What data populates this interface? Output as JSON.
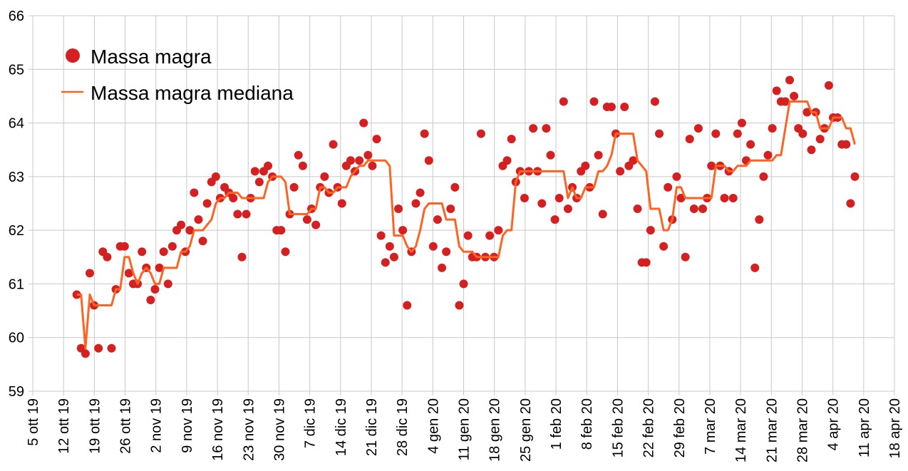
{
  "chart_data": {
    "type": "line",
    "title": "",
    "xlabel": "",
    "ylabel": "",
    "ylim": [
      59,
      66
    ],
    "yticks": [
      "59",
      "60",
      "61",
      "62",
      "63",
      "64",
      "65",
      "66"
    ],
    "xticks": [
      "5 ott 19",
      "12 ott 19",
      "19 ott 19",
      "26 ott 19",
      "2 nov 19",
      "9 nov 19",
      "16 nov 19",
      "23 nov 19",
      "30 nov 19",
      "7 dic 19",
      "14 dic 19",
      "21 dic 19",
      "28 dic 19",
      "4 gen 20",
      "11 gen 20",
      "18 gen 20",
      "25 gen 20",
      "1 feb 20",
      "8 feb 20",
      "15 feb 20",
      "22 feb 20",
      "29 feb 20",
      "7 mar 20",
      "14 mar 20",
      "21 mar 20",
      "28 mar 20",
      "4 apr 20",
      "11 apr 20",
      "18 apr 20"
    ],
    "x_unit": "days since 5 ott 19",
    "x_range_days": [
      0,
      196
    ],
    "data_day_range": [
      10,
      187
    ],
    "grid": true,
    "legend_position": "top-left",
    "colors": {
      "points": "#d42020",
      "median": "#ff6321",
      "grid": "#c8c8c8"
    },
    "series": [
      {
        "name": "Massa magra",
        "kind": "scatter",
        "values": [
          60.8,
          59.8,
          59.7,
          61.2,
          60.6,
          59.8,
          61.6,
          61.5,
          59.8,
          60.9,
          61.7,
          61.7,
          61.2,
          61.0,
          61.0,
          61.6,
          61.3,
          60.7,
          60.9,
          61.3,
          61.6,
          61.0,
          61.7,
          62.0,
          62.1,
          61.6,
          62.0,
          62.7,
          62.2,
          61.8,
          62.5,
          62.9,
          63.0,
          62.6,
          62.8,
          62.7,
          62.6,
          62.3,
          61.5,
          62.3,
          62.6,
          63.1,
          62.9,
          63.1,
          63.2,
          63.0,
          62.0,
          62.0,
          61.6,
          62.3,
          62.8,
          63.4,
          63.2,
          62.2,
          62.4,
          62.1,
          62.8,
          63.0,
          62.7,
          63.6,
          62.8,
          62.5,
          63.2,
          63.3,
          63.1,
          63.3,
          64.0,
          63.4,
          63.2,
          63.7,
          61.9,
          61.4,
          61.7,
          61.5,
          62.4,
          62.0,
          60.6,
          61.6,
          62.5,
          62.7,
          63.8,
          63.3,
          61.7,
          62.2,
          61.3,
          61.6,
          62.4,
          62.8,
          60.6,
          61.0,
          61.9,
          61.5,
          61.5,
          63.8,
          61.5,
          61.9,
          61.5,
          62.0,
          63.2,
          63.3,
          63.7,
          62.9,
          63.1,
          62.6,
          63.1,
          63.9,
          63.1,
          62.5,
          63.9,
          63.4,
          62.2,
          62.6,
          64.4,
          62.4,
          62.8,
          62.6,
          63.1,
          63.2,
          62.8,
          64.4,
          63.4,
          62.3,
          64.3,
          64.3,
          63.8,
          63.1,
          64.3,
          63.2,
          63.3,
          62.4,
          61.4,
          61.4,
          62.0,
          64.4,
          63.8,
          61.7,
          62.8,
          62.2,
          63.0,
          62.6,
          61.5,
          63.7,
          62.4,
          63.9,
          62.4,
          62.6,
          63.2,
          63.8,
          63.2,
          62.6,
          63.1,
          62.6,
          63.8,
          64.0,
          63.3,
          63.6,
          61.3,
          62.2,
          63.0,
          63.4,
          63.9,
          64.6,
          64.4,
          64.4,
          64.8,
          64.5,
          63.9,
          63.8,
          64.2,
          63.5,
          64.2,
          63.7,
          63.9,
          64.7,
          64.1,
          64.1,
          63.6,
          63.6,
          62.5,
          63.0
        ]
      },
      {
        "name": "Massa magra mediana",
        "kind": "line",
        "method": "rolling median (7 samples)"
      }
    ]
  }
}
